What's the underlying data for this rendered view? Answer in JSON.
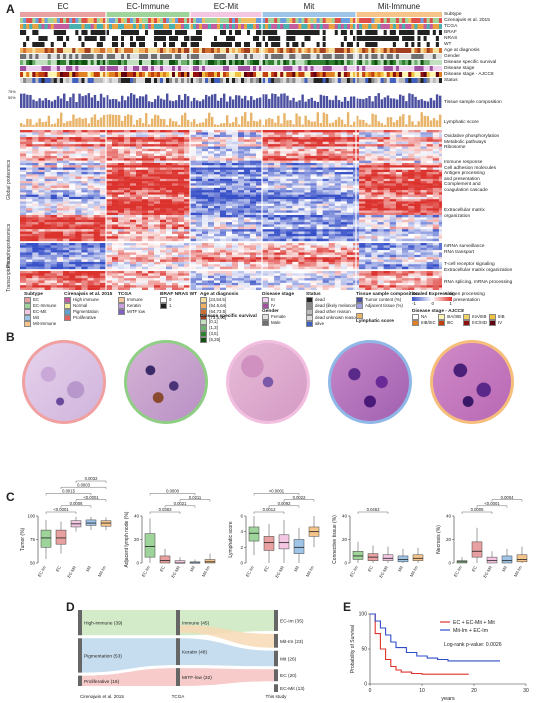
{
  "panelA": {
    "letter": "A",
    "groups": [
      "EC",
      "EC-Immune",
      "EC-Mit",
      "Mit",
      "Mit-Immune"
    ],
    "annot_rows": [
      "Subtype",
      "Cirenajwis et al. 2015",
      "TCGA",
      "BRAF",
      "NRAS",
      "WT",
      "Age at diagnosis",
      "Gender",
      "Disease specific survival",
      "Disease stage",
      "Disease stage - AJCC8",
      "Status"
    ],
    "bar_labels": [
      "Tissue sample composition",
      "Lymphatic score"
    ],
    "bar_axis": [
      "75%",
      "50%"
    ],
    "side_labels": [
      "Global proteomics",
      "Phosphoproteomics",
      "Transcriptomics"
    ],
    "module_labels": [
      [
        "Oxidative phosphorylation",
        "Metabolic pathways",
        "Ribosome"
      ],
      [
        "Immune response",
        "Cell adhesion molecules",
        "Antigen processing",
        "and presentation",
        "Complement and",
        "coagulation cascade"
      ],
      [
        "Extracellular matrix",
        "organization"
      ],
      [
        "mRNA surveillance",
        "RNA transport"
      ],
      [
        "T-cell receptor signaling",
        "Extracellular matrix organization"
      ],
      [
        "RNA splicing, mRNA processing"
      ],
      [
        "Antigen processing",
        "and presentation"
      ]
    ],
    "legend": {
      "subtype": {
        "title": "Subtype",
        "items": [
          "EC",
          "EC-Immune",
          "EC-Mit",
          "Mit",
          "Mit-Immune"
        ]
      },
      "cirenajwis": {
        "title": "Cirenajwis et al. 2015",
        "items": [
          "High immune",
          "Normal",
          "Pigmentation",
          "Proliferative"
        ]
      },
      "tcga": {
        "title": "TCGA",
        "items": [
          "Immune",
          "Keratin",
          "MITF low"
        ]
      },
      "mut": {
        "title": "BRAF  NRAS  WT",
        "items": [
          "0",
          "1"
        ]
      },
      "age": {
        "title": "Age at diagnosis",
        "items": [
          "[24,54.5]",
          "(54.5,64]",
          "(64,73.5]",
          "(73.5,90]"
        ]
      },
      "dss": {
        "title": "Disease specific survival",
        "items": [
          "[0,1]",
          "(1,3]",
          "(3,5]",
          "(5,26]"
        ]
      },
      "dstage": {
        "title": "Disease stage",
        "items": [
          "III",
          "IV"
        ]
      },
      "gender": {
        "title": "Gender",
        "items": [
          "Female",
          "Male"
        ]
      },
      "status": {
        "title": "Status",
        "items": [
          "dead",
          "dead (likely melanoma)",
          "dead other reason",
          "dead unknown reason",
          "alive"
        ]
      },
      "tissue": {
        "title": "Tissue sample composition",
        "items": [
          "Tumor content (%)",
          "Adjacent tissue (%)"
        ]
      },
      "lymph": {
        "title": "Lymphatic score"
      },
      "scaled": {
        "title": "Scaled Expression",
        "ticks": [
          "-1",
          "0",
          "1"
        ]
      },
      "ajcc": {
        "title": "Disease stage - AJCC8",
        "items": [
          "NA",
          "IIIA/IIIB",
          "IIIA/IIIB",
          "IIIB",
          "IIIB/IIIC",
          "IIIC",
          "IIIC/IIID",
          "IV"
        ]
      }
    },
    "colors": {
      "EC": "#e8a0a0",
      "EC-Immune": "#9ed49a",
      "EC-Mit": "#f3c6e2",
      "Mit": "#9ec4e8",
      "Mit-Immune": "#f5c48a",
      "red": "#e0322c",
      "blue": "#3b50c8",
      "bar": "#e8b46a",
      "bar2": "#4b4fa0"
    }
  },
  "panelB": {
    "letter": "B",
    "border_colors": [
      "#f0a0a0",
      "#8fce84",
      "#f3bfe0",
      "#8fb8e8",
      "#f7bd7a"
    ]
  },
  "panelC": {
    "letter": "C",
    "plots": [
      {
        "ylabel": "Tumor (%)",
        "yticks": [
          "100",
          "75",
          "50"
        ],
        "cats": [
          "EC-Im",
          "EC",
          "EC-Mit",
          "Mit",
          "Mit-Im"
        ],
        "pvals": [
          "<0.0001",
          "0.0006",
          "<0.0001",
          "0.0015",
          "0.0003",
          "0.0032"
        ],
        "boxes": [
          [
            45,
            60,
            72,
            82,
            95
          ],
          [
            52,
            64,
            72,
            82,
            93
          ],
          [
            80,
            86,
            90,
            94,
            99
          ],
          [
            82,
            88,
            91,
            95,
            99
          ],
          [
            82,
            87,
            91,
            94,
            98
          ]
        ]
      },
      {
        "ylabel": "Adjacent lymph node (%)",
        "yticks": [
          "40",
          "20",
          "0"
        ],
        "cats": [
          "EC-Im",
          "EC",
          "EC-Mit",
          "Mit",
          "Mit-Im"
        ],
        "pvals": [
          "0.0383",
          "0.0021",
          "0.0211",
          "0.0000"
        ],
        "boxes": [
          [
            0,
            5,
            14,
            25,
            38
          ],
          [
            0,
            0,
            2,
            6,
            12
          ],
          [
            0,
            0,
            0,
            2,
            5
          ],
          [
            0,
            0,
            0,
            1,
            3
          ],
          [
            0,
            0,
            1,
            3,
            8
          ]
        ]
      },
      {
        "ylabel": "Lymphatic score",
        "yticks": [
          "6",
          "4",
          "2",
          "0"
        ],
        "cats": [
          "EC-Im",
          "EC",
          "EC-Mit",
          "Mit",
          "Mit-Im"
        ],
        "pvals": [
          "0.0012",
          "0.0092",
          "0.0022",
          "<0.0001"
        ],
        "boxes": [
          [
            1,
            2.8,
            3.8,
            4.6,
            6
          ],
          [
            0,
            1.6,
            2.6,
            3.4,
            5
          ],
          [
            0,
            1.8,
            2.6,
            3.6,
            5.5
          ],
          [
            0,
            1.2,
            2,
            3,
            4.5
          ],
          [
            2,
            3.4,
            4,
            4.6,
            6
          ]
        ]
      },
      {
        "ylabel": "Connective tissue (%)",
        "yticks": [
          "40",
          "20",
          "0"
        ],
        "cats": [
          "EC-Im",
          "EC",
          "EC-Mit",
          "Mit",
          "Mit-Im"
        ],
        "pvals": [
          "0.0463"
        ],
        "boxes": [
          [
            0,
            3,
            6,
            10,
            18
          ],
          [
            0,
            2,
            5,
            8,
            15
          ],
          [
            0,
            2,
            4,
            7,
            14
          ],
          [
            0,
            1,
            3,
            6,
            12
          ],
          [
            0,
            2,
            4,
            7,
            13
          ]
        ]
      },
      {
        "ylabel": "Necrosis (%)",
        "yticks": [
          "40",
          "20",
          "0"
        ],
        "cats": [
          "EC-Im",
          "EC",
          "EC-Mit",
          "Mit",
          "Mit-Im"
        ],
        "pvals": [
          "0.0005",
          "<0.0001",
          "0.0004"
        ],
        "boxes": [
          [
            0,
            0,
            1,
            2,
            5
          ],
          [
            0,
            5,
            10,
            18,
            30
          ],
          [
            0,
            0,
            2,
            5,
            10
          ],
          [
            0,
            0,
            2,
            6,
            12
          ],
          [
            0,
            1,
            3,
            7,
            14
          ]
        ]
      }
    ]
  },
  "panelD": {
    "letter": "D",
    "left": [
      {
        "label": "High-immune (39)",
        "color": "#cbe8c0",
        "n": 39
      },
      {
        "label": "Pigmentation (53)",
        "color": "#bcd7ec",
        "n": 53
      },
      {
        "label": "Proliferative (16)",
        "color": "#f5c2c0",
        "n": 16
      }
    ],
    "mid": [
      {
        "label": "Immune (45)",
        "color": "#cbe8c0",
        "n": 45
      },
      {
        "label": "Keratin (48)",
        "color": "#bcd7ec",
        "n": 48
      },
      {
        "label": "MITF-low (32)",
        "color": "#f5c2c0",
        "n": 32
      }
    ],
    "right": [
      {
        "label": "EC-Im (35)",
        "color": "#cbe8c0",
        "n": 35
      },
      {
        "label": "Mit-Im (23)",
        "color": "#f7d9b4",
        "n": 23
      },
      {
        "label": "Mit (26)",
        "color": "#bcd7ec",
        "n": 26
      },
      {
        "label": "EC (20)",
        "color": "#f5c2c0",
        "n": 20
      },
      {
        "label": "EC-Mit (13)",
        "color": "#f3cde6",
        "n": 13
      }
    ],
    "axis": [
      "Cirenajwis et al. 2015",
      "TCGA",
      "This study"
    ]
  },
  "panelE": {
    "letter": "E",
    "ylabel": "Probability of Survival",
    "xlabel": "years",
    "yticks": [
      "100",
      "50",
      "0"
    ],
    "xticks": [
      "0",
      "10",
      "20",
      "30"
    ],
    "legend": [
      "EC + EC-Mit + Mit",
      "Mit-Im + EC-Im"
    ],
    "pvalue": "Log-rank p-value: 0.0026",
    "chart_data": {
      "type": "line",
      "xlabel": "years",
      "ylabel": "Probability of Survival",
      "xlim": [
        0,
        30
      ],
      "ylim": [
        0,
        100
      ],
      "series": [
        {
          "name": "EC + EC-Mit + Mit",
          "color": "#e0322c",
          "x": [
            0,
            1,
            2,
            3,
            4,
            5,
            6,
            8,
            10,
            12,
            15,
            19
          ],
          "y": [
            100,
            72,
            50,
            35,
            25,
            20,
            17,
            15,
            14,
            14,
            14,
            14
          ]
        },
        {
          "name": "Mit-Im + EC-Im",
          "color": "#2f4ec8",
          "x": [
            0,
            1,
            2,
            3,
            4,
            5,
            7,
            9,
            11,
            13,
            15,
            20,
            25
          ],
          "y": [
            100,
            90,
            80,
            70,
            60,
            52,
            45,
            40,
            37,
            35,
            33,
            33,
            33
          ]
        }
      ]
    }
  }
}
